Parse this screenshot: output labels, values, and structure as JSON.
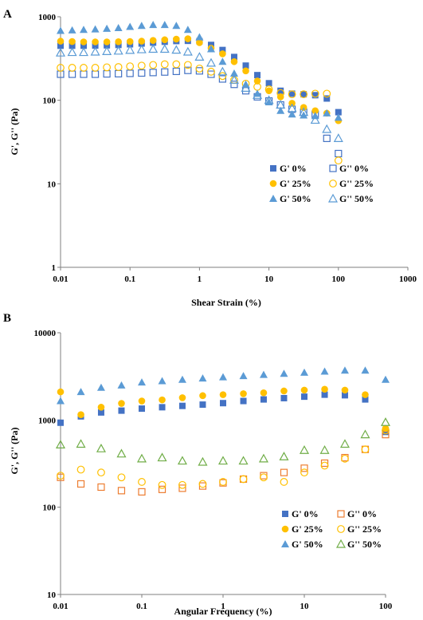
{
  "chart_data": [
    {
      "panel": "A",
      "type": "scatter",
      "xlabel": "Shear Strain (%)",
      "ylabel": "G', G'' (Pa)",
      "xscale": "log",
      "yscale": "log",
      "xlim": [
        0.01,
        1000
      ],
      "ylim": [
        1,
        1000
      ],
      "xticks": [
        "0.01",
        "0.1",
        "1",
        "10",
        "100",
        "1000"
      ],
      "yticks": [
        "1",
        "10",
        "100",
        "1000"
      ],
      "grid": false,
      "legend_position": "bottom-right",
      "series": [
        {
          "name": "G' 0%",
          "marker": "square",
          "filled": true,
          "color": "#4472c4",
          "x": [
            0.01,
            0.0147,
            0.0215,
            0.0316,
            0.0464,
            0.0681,
            0.1,
            0.147,
            0.215,
            0.316,
            0.464,
            0.681,
            1,
            1.47,
            2.15,
            3.16,
            4.64,
            6.81,
            10,
            14.7,
            21.5,
            31.6,
            46.4,
            68.1,
            100
          ],
          "y": [
            450,
            450,
            450,
            452,
            455,
            460,
            468,
            478,
            490,
            502,
            512,
            515,
            510,
            460,
            400,
            330,
            260,
            200,
            160,
            130,
            120,
            118,
            115,
            105,
            72
          ]
        },
        {
          "name": "G'' 0%",
          "marker": "square",
          "filled": false,
          "color": "#4472c4",
          "x": [
            0.01,
            0.0147,
            0.0215,
            0.0316,
            0.0464,
            0.0681,
            0.1,
            0.147,
            0.215,
            0.316,
            0.464,
            0.681,
            1,
            1.47,
            2.15,
            3.16,
            4.64,
            6.81,
            10,
            14.7,
            21.5,
            31.6,
            46.4,
            68.1,
            100
          ],
          "y": [
            205,
            205,
            205,
            205,
            207,
            208,
            210,
            212,
            215,
            218,
            222,
            228,
            225,
            205,
            180,
            155,
            130,
            110,
            98,
            88,
            78,
            72,
            68,
            35,
            23
          ]
        },
        {
          "name": "G' 25%",
          "marker": "circle",
          "filled": true,
          "color": "#ffc000",
          "x": [
            0.01,
            0.0147,
            0.0215,
            0.0316,
            0.0464,
            0.0681,
            0.1,
            0.147,
            0.215,
            0.316,
            0.464,
            0.681,
            1,
            1.47,
            2.15,
            3.16,
            4.64,
            6.81,
            10,
            14.7,
            21.5,
            31.6,
            46.4,
            68.1,
            100
          ],
          "y": [
            510,
            505,
            500,
            500,
            500,
            502,
            505,
            510,
            520,
            530,
            540,
            545,
            490,
            420,
            360,
            290,
            225,
            170,
            130,
            110,
            92,
            82,
            75,
            70,
            57
          ]
        },
        {
          "name": "G'' 25%",
          "marker": "circle",
          "filled": false,
          "color": "#ffc000",
          "x": [
            0.01,
            0.0147,
            0.0215,
            0.0316,
            0.0464,
            0.0681,
            0.1,
            0.147,
            0.215,
            0.316,
            0.464,
            0.681,
            1,
            1.47,
            2.15,
            3.16,
            4.64,
            6.81,
            10,
            14.7,
            21.5,
            31.6,
            46.4,
            68.1,
            100
          ],
          "y": [
            245,
            245,
            245,
            245,
            248,
            250,
            255,
            260,
            265,
            270,
            270,
            265,
            240,
            220,
            195,
            175,
            158,
            145,
            135,
            122,
            118,
            118,
            120,
            120,
            19
          ]
        },
        {
          "name": "G' 50%",
          "marker": "triangle",
          "filled": true,
          "color": "#5b9bd5",
          "x": [
            0.01,
            0.0147,
            0.0215,
            0.0316,
            0.0464,
            0.0681,
            0.1,
            0.147,
            0.215,
            0.316,
            0.464,
            0.681,
            1,
            1.47,
            2.15,
            3.16,
            4.64,
            6.81,
            10,
            14.7,
            21.5,
            31.6,
            46.4,
            68.1,
            100
          ],
          "y": [
            680,
            690,
            700,
            710,
            720,
            735,
            760,
            780,
            800,
            800,
            780,
            700,
            570,
            410,
            290,
            210,
            155,
            120,
            95,
            75,
            68,
            66,
            65,
            70,
            62
          ]
        },
        {
          "name": "G'' 50%",
          "marker": "triangle",
          "filled": false,
          "color": "#5b9bd5",
          "x": [
            0.01,
            0.0147,
            0.0215,
            0.0316,
            0.0464,
            0.0681,
            0.1,
            0.147,
            0.215,
            0.316,
            0.464,
            0.681,
            1,
            1.47,
            2.15,
            3.16,
            4.64,
            6.81,
            10,
            14.7,
            21.5,
            31.6,
            46.4,
            68.1,
            100
          ],
          "y": [
            370,
            375,
            375,
            380,
            385,
            390,
            398,
            405,
            410,
            410,
            400,
            380,
            330,
            280,
            220,
            175,
            140,
            115,
            100,
            88,
            80,
            72,
            58,
            45,
            35
          ]
        }
      ]
    },
    {
      "panel": "B",
      "type": "scatter",
      "xlabel": "Angular Frequency (%)",
      "ylabel": "G', G'' (Pa)",
      "xscale": "log",
      "yscale": "log",
      "xlim": [
        0.01,
        100
      ],
      "ylim": [
        10,
        10000
      ],
      "xticks": [
        "0.01",
        "0.1",
        "1",
        "10",
        "100"
      ],
      "yticks": [
        "10",
        "100",
        "1000",
        "10000"
      ],
      "grid": false,
      "legend_position": "bottom-right",
      "series": [
        {
          "name": "G' 0%",
          "marker": "square",
          "filled": true,
          "color": "#4472c4",
          "x": [
            0.01,
            0.0178,
            0.0316,
            0.0562,
            0.1,
            0.178,
            0.316,
            0.562,
            1,
            1.78,
            3.16,
            5.62,
            10,
            17.8,
            31.6,
            56.2,
            100
          ],
          "y": [
            930,
            1100,
            1220,
            1280,
            1350,
            1400,
            1450,
            1500,
            1560,
            1650,
            1720,
            1780,
            1850,
            1950,
            1920,
            1720,
            730
          ]
        },
        {
          "name": "G'' 0%",
          "marker": "square",
          "filled": false,
          "color": "#ed7d31",
          "x": [
            0.01,
            0.0178,
            0.0316,
            0.0562,
            0.1,
            0.178,
            0.316,
            0.562,
            1,
            1.78,
            3.16,
            5.62,
            10,
            17.8,
            31.6,
            56.2,
            100
          ],
          "y": [
            220,
            185,
            170,
            155,
            150,
            160,
            165,
            175,
            190,
            210,
            230,
            250,
            280,
            320,
            370,
            460,
            680
          ]
        },
        {
          "name": "G' 25%",
          "marker": "circle",
          "filled": true,
          "color": "#ffc000",
          "x": [
            0.01,
            0.0178,
            0.0316,
            0.0562,
            0.1,
            0.178,
            0.316,
            0.562,
            1,
            1.78,
            3.16,
            5.62,
            10,
            17.8,
            31.6,
            56.2,
            100
          ],
          "y": [
            2100,
            1150,
            1400,
            1550,
            1650,
            1700,
            1800,
            1900,
            1950,
            2000,
            2050,
            2150,
            2200,
            2250,
            2200,
            1950,
            800
          ]
        },
        {
          "name": "G'' 25%",
          "marker": "circle",
          "filled": false,
          "color": "#ffc000",
          "x": [
            0.01,
            0.0178,
            0.0316,
            0.0562,
            0.1,
            0.178,
            0.316,
            0.562,
            1,
            1.78,
            3.16,
            5.62,
            10,
            17.8,
            31.6,
            56.2,
            100
          ],
          "y": [
            230,
            270,
            250,
            220,
            195,
            180,
            180,
            185,
            195,
            210,
            220,
            195,
            250,
            300,
            360,
            460,
            760
          ]
        },
        {
          "name": "G' 50%",
          "marker": "triangle",
          "filled": true,
          "color": "#5b9bd5",
          "x": [
            0.01,
            0.0178,
            0.0316,
            0.0562,
            0.1,
            0.178,
            0.316,
            0.562,
            1,
            1.78,
            3.16,
            5.62,
            10,
            17.8,
            31.6,
            56.2,
            100
          ],
          "y": [
            1650,
            2100,
            2350,
            2500,
            2700,
            2800,
            2900,
            3000,
            3100,
            3200,
            3300,
            3400,
            3500,
            3600,
            3700,
            3700,
            2900
          ]
        },
        {
          "name": "G'' 50%",
          "marker": "triangle",
          "filled": false,
          "color": "#70ad47",
          "x": [
            0.01,
            0.0178,
            0.0316,
            0.0562,
            0.1,
            0.178,
            0.316,
            0.562,
            1,
            1.78,
            3.16,
            5.62,
            10,
            17.8,
            31.6,
            56.2,
            100
          ],
          "y": [
            520,
            530,
            470,
            410,
            360,
            370,
            340,
            330,
            340,
            340,
            360,
            380,
            450,
            450,
            530,
            680,
            940
          ]
        }
      ]
    }
  ]
}
